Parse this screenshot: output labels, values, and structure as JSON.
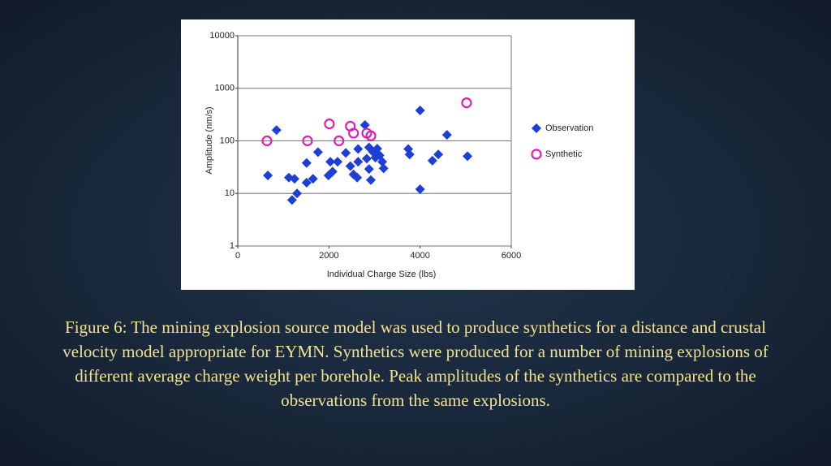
{
  "chart_data": {
    "type": "scatter",
    "xlabel": "Individual Charge Size (lbs)",
    "ylabel": "Amplitude (nm/s)",
    "xlim": [
      0,
      6000
    ],
    "xticks": [
      0,
      2000,
      4000,
      6000
    ],
    "ylim": [
      1,
      10000
    ],
    "yticks": [
      1,
      10,
      100,
      1000,
      10000
    ],
    "log_y": true,
    "grid": true,
    "legend": "right",
    "series": [
      {
        "name": "Observation",
        "color": "#1c3fd6",
        "marker": "diamond",
        "x": [
          660,
          850,
          1120,
          1245,
          1190,
          1300,
          1510,
          1510,
          1650,
          1760,
          1990,
          2080,
          2030,
          2190,
          2370,
          2470,
          2540,
          2620,
          2640,
          2640,
          2790,
          2830,
          2880,
          2880,
          2920,
          2970,
          3020,
          3060,
          3110,
          3170,
          3200,
          3740,
          3770,
          4000,
          4000,
          4270,
          4400,
          4590,
          5040
        ],
        "values": [
          22,
          160,
          20,
          19,
          7.5,
          10,
          38,
          16,
          19,
          61,
          22,
          26,
          40,
          40,
          59,
          33,
          23,
          20,
          70,
          40,
          200,
          46,
          75,
          29,
          18,
          61,
          48,
          71,
          53,
          40,
          30,
          70,
          55,
          380,
          12,
          42,
          55,
          130,
          51
        ]
      },
      {
        "name": "Synthetic",
        "color": "#e01eb4",
        "marker": "circle",
        "x": [
          640,
          1530,
          2010,
          2220,
          2470,
          2540,
          2830,
          2920,
          5020
        ],
        "values": [
          100,
          100,
          210,
          100,
          190,
          140,
          140,
          125,
          530
        ]
      }
    ]
  },
  "caption": "Figure 6: The mining explosion source model was used to produce synthetics for a distance and crustal velocity model appropriate for EYMN. Synthetics were produced for a number of mining explosions of different average charge weight per borehole. Peak amplitudes of the synthetics are compared to the observations from the same explosions."
}
